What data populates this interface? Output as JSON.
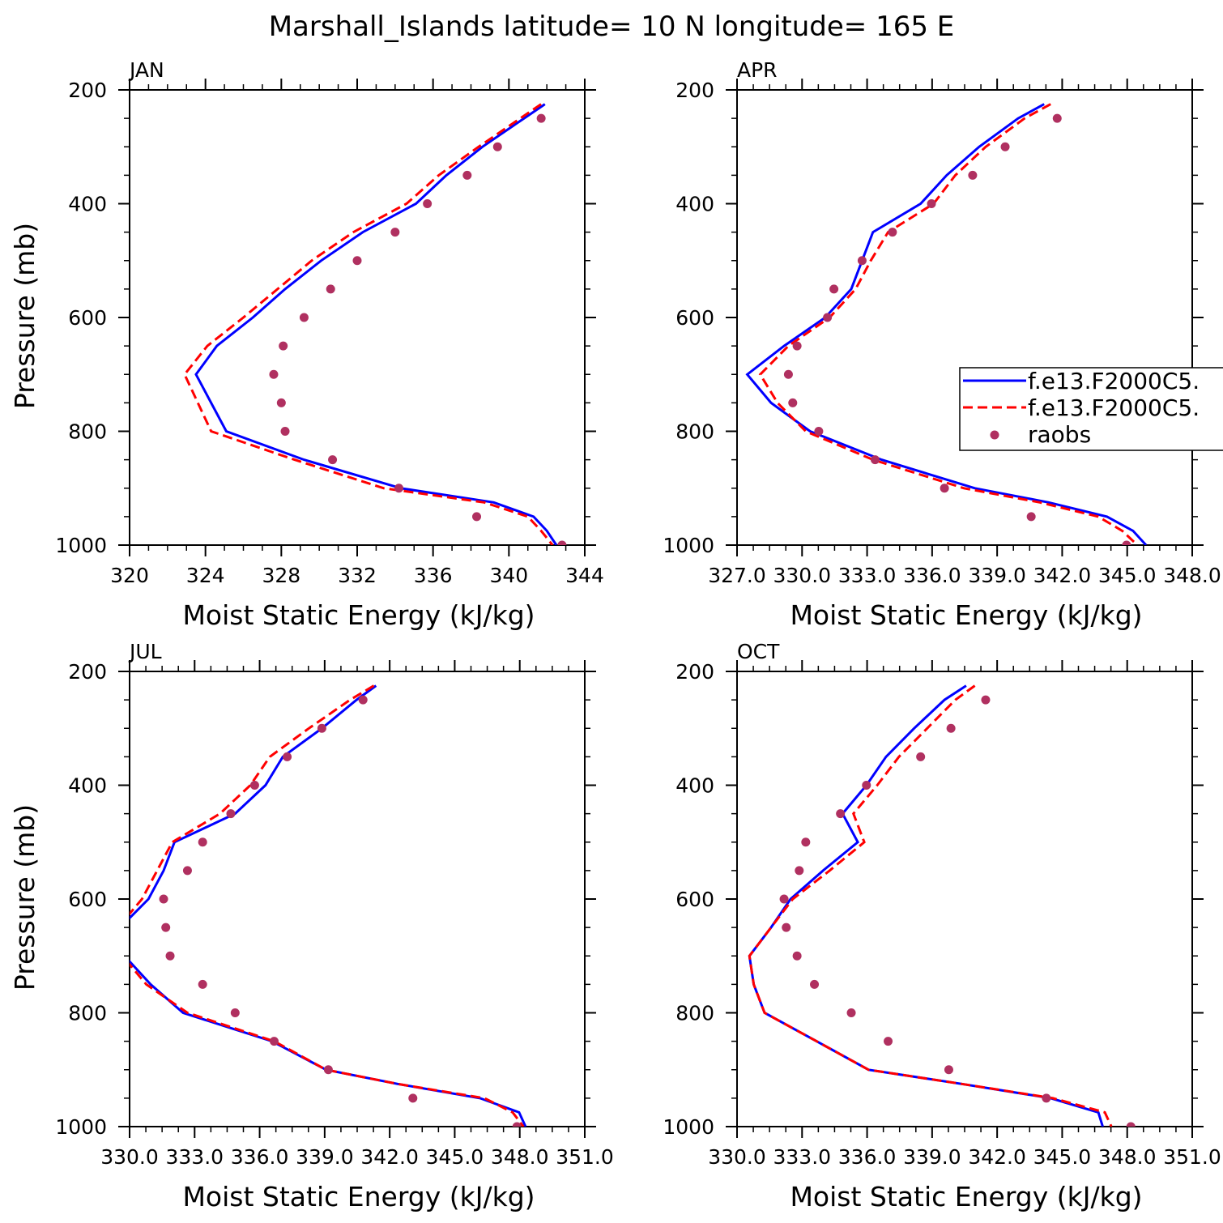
{
  "figure": {
    "title": "Marshall_Islands  latitude= 10 N longitude= 165 E"
  },
  "legend": {
    "entries": [
      "f.e13.F2000C5.",
      "f.e13.F2000C5.",
      "raobs"
    ]
  },
  "colors": {
    "model_a": "#0000ff",
    "model_b": "#ff0000",
    "raobs": "#b03060"
  },
  "chart_data": [
    {
      "type": "line",
      "panel": "JAN",
      "xlabel": "Moist Static Energy (kJ/kg)",
      "ylabel": "Pressure (mb)",
      "xlim": [
        320,
        344
      ],
      "ylim": [
        1000,
        200
      ],
      "y_reversed": true,
      "xticks": [
        320,
        324,
        328,
        332,
        336,
        340,
        344
      ],
      "xticklabels": [
        "320",
        "324",
        "328",
        "332",
        "336",
        "340",
        "344"
      ],
      "yticks": [
        200,
        400,
        600,
        800,
        1000
      ],
      "yticklabels": [
        "200",
        "400",
        "600",
        "800",
        "1000"
      ],
      "series": [
        {
          "style": "solid",
          "pressure": [
            225,
            250,
            300,
            350,
            400,
            450,
            500,
            550,
            600,
            650,
            700,
            750,
            800,
            850,
            900,
            925,
            950,
            975,
            1000
          ],
          "values": [
            341.9,
            340.8,
            338.6,
            336.7,
            335.1,
            332.3,
            330.1,
            328.2,
            326.5,
            324.6,
            323.5,
            324.3,
            325.1,
            329.2,
            334.3,
            339.2,
            341.3,
            342.0,
            342.5
          ]
        },
        {
          "style": "dashed",
          "pressure": [
            225,
            250,
            300,
            350,
            400,
            450,
            500,
            550,
            600,
            650,
            700,
            750,
            800,
            850,
            900,
            925,
            950,
            975,
            1000
          ],
          "values": [
            341.7,
            340.6,
            338.4,
            336.3,
            334.6,
            331.8,
            329.6,
            327.8,
            326.0,
            324.1,
            322.9,
            323.6,
            324.3,
            328.7,
            333.4,
            338.7,
            341.0,
            341.7,
            342.3
          ]
        },
        {
          "style": "dots",
          "pressure": [
            250,
            300,
            350,
            400,
            450,
            500,
            550,
            600,
            650,
            700,
            750,
            800,
            850,
            900,
            950,
            1000
          ],
          "values": [
            341.7,
            339.4,
            337.8,
            335.7,
            334.0,
            332.0,
            330.6,
            329.2,
            328.1,
            327.6,
            328.0,
            328.2,
            330.7,
            334.2,
            338.3,
            342.8
          ]
        }
      ]
    },
    {
      "type": "line",
      "panel": "APR",
      "xlabel": "Moist Static Energy (kJ/kg)",
      "ylabel": "",
      "xlim": [
        327.03,
        348.03
      ],
      "ylim": [
        1000,
        200
      ],
      "y_reversed": true,
      "xticks": [
        327.03,
        330.03,
        333.03,
        336.03,
        339.03,
        342.03,
        345.03,
        348.03
      ],
      "xticklabels": [
        "327.0",
        "330.0",
        "333.0",
        "336.0",
        "339.0",
        "342.0",
        "345.0",
        "348.0"
      ],
      "yticks": [
        200,
        400,
        600,
        800,
        1000
      ],
      "yticklabels": [
        "200",
        "400",
        "600",
        "800",
        "1000"
      ],
      "series": [
        {
          "style": "solid",
          "pressure": [
            225,
            250,
            300,
            350,
            400,
            450,
            500,
            550,
            600,
            650,
            700,
            750,
            800,
            850,
            900,
            925,
            950,
            975,
            1000
          ],
          "values": [
            341.2,
            340.0,
            338.2,
            336.7,
            335.5,
            333.3,
            332.8,
            332.3,
            331.1,
            329.2,
            327.5,
            328.6,
            330.4,
            333.7,
            338.0,
            341.4,
            344.1,
            345.3,
            345.9
          ]
        },
        {
          "style": "dashed",
          "pressure": [
            225,
            250,
            300,
            350,
            400,
            450,
            500,
            550,
            600,
            650,
            700,
            750,
            800,
            850,
            900,
            925,
            950,
            975,
            1000
          ],
          "values": [
            341.5,
            340.3,
            338.5,
            337.1,
            336.1,
            334.0,
            333.2,
            332.5,
            331.3,
            329.4,
            328.1,
            328.9,
            330.2,
            333.3,
            337.5,
            341.0,
            343.7,
            344.8,
            345.5
          ]
        },
        {
          "style": "dots",
          "pressure": [
            250,
            300,
            350,
            400,
            450,
            500,
            550,
            600,
            650,
            700,
            750,
            800,
            850,
            900,
            950,
            1000
          ],
          "values": [
            341.8,
            339.4,
            337.9,
            336.0,
            334.2,
            332.8,
            331.5,
            331.2,
            329.8,
            329.4,
            329.6,
            330.8,
            333.4,
            336.6,
            340.6,
            345.0
          ]
        }
      ]
    },
    {
      "type": "line",
      "panel": "JUL",
      "xlabel": "Moist Static Energy (kJ/kg)",
      "ylabel": "Pressure (mb)",
      "xlim": [
        330.03,
        351.03
      ],
      "ylim": [
        1000,
        200
      ],
      "y_reversed": true,
      "xticks": [
        330.03,
        333.03,
        336.03,
        339.03,
        342.03,
        345.03,
        348.03,
        351.03
      ],
      "xticklabels": [
        "330.0",
        "333.0",
        "336.0",
        "339.0",
        "342.0",
        "345.0",
        "348.0",
        "351.0"
      ],
      "yticks": [
        200,
        400,
        600,
        800,
        1000
      ],
      "yticklabels": [
        "200",
        "400",
        "600",
        "800",
        "1000"
      ],
      "series": [
        {
          "style": "solid",
          "pressure": [
            225,
            250,
            300,
            350,
            400,
            450,
            500,
            550,
            600,
            650,
            700,
            750,
            800,
            850,
            900,
            925,
            950,
            975,
            1000
          ],
          "values": [
            341.4,
            340.5,
            338.9,
            337.1,
            336.3,
            334.9,
            332.1,
            331.6,
            330.9,
            329.6,
            329.8,
            331.0,
            332.5,
            336.6,
            339.1,
            342.4,
            346.2,
            348.0,
            348.3
          ]
        },
        {
          "style": "dashed",
          "pressure": [
            225,
            250,
            300,
            350,
            400,
            450,
            500,
            550,
            600,
            650,
            700,
            750,
            800,
            850,
            900,
            925,
            950,
            975,
            1000
          ],
          "values": [
            341.3,
            340.2,
            338.3,
            336.5,
            335.6,
            334.2,
            332.0,
            331.3,
            330.6,
            329.5,
            329.7,
            330.8,
            332.7,
            336.7,
            339.1,
            342.4,
            346.4,
            347.7,
            348.2
          ]
        },
        {
          "style": "dots",
          "pressure": [
            250,
            300,
            350,
            400,
            450,
            500,
            550,
            600,
            650,
            700,
            750,
            800,
            850,
            900,
            950,
            1000
          ],
          "values": [
            340.8,
            338.9,
            337.3,
            335.8,
            334.7,
            333.4,
            332.7,
            331.6,
            331.7,
            331.9,
            333.4,
            334.9,
            336.7,
            339.2,
            343.1,
            347.9
          ]
        }
      ]
    },
    {
      "type": "line",
      "panel": "OCT",
      "xlabel": "Moist Static Energy (kJ/kg)",
      "ylabel": "",
      "xlim": [
        330.03,
        351.03
      ],
      "ylim": [
        1000,
        200
      ],
      "y_reversed": true,
      "xticks": [
        330.03,
        333.03,
        336.03,
        339.03,
        342.03,
        345.03,
        348.03,
        351.03
      ],
      "xticklabels": [
        "330.0",
        "333.0",
        "336.0",
        "339.0",
        "342.0",
        "345.0",
        "348.0",
        "351.0"
      ],
      "yticks": [
        200,
        400,
        600,
        800,
        1000
      ],
      "yticklabels": [
        "200",
        "400",
        "600",
        "800",
        "1000"
      ],
      "series": [
        {
          "style": "solid",
          "pressure": [
            225,
            250,
            300,
            350,
            400,
            450,
            500,
            550,
            600,
            650,
            700,
            750,
            800,
            850,
            900,
            925,
            950,
            975,
            1000
          ],
          "values": [
            340.6,
            339.6,
            338.2,
            336.9,
            336.0,
            334.9,
            335.6,
            334.0,
            332.5,
            331.6,
            330.6,
            330.8,
            331.3,
            333.7,
            336.1,
            340.4,
            344.5,
            346.7,
            346.9
          ]
        },
        {
          "style": "dashed",
          "pressure": [
            225,
            250,
            300,
            350,
            400,
            450,
            500,
            550,
            600,
            650,
            700,
            750,
            800,
            850,
            900,
            925,
            950,
            975,
            1000
          ],
          "values": [
            341.0,
            340.1,
            338.8,
            337.5,
            336.5,
            335.4,
            335.9,
            334.3,
            332.6,
            331.6,
            330.6,
            330.8,
            331.3,
            333.7,
            336.1,
            340.4,
            344.6,
            347.0,
            347.3
          ]
        },
        {
          "style": "dots",
          "pressure": [
            250,
            300,
            350,
            400,
            450,
            500,
            550,
            600,
            650,
            700,
            750,
            800,
            850,
            900,
            950,
            1000
          ],
          "values": [
            341.5,
            339.9,
            338.5,
            336.0,
            334.8,
            333.2,
            332.9,
            332.2,
            332.3,
            332.8,
            333.6,
            335.3,
            337.0,
            339.8,
            344.3,
            348.2
          ]
        }
      ]
    }
  ]
}
